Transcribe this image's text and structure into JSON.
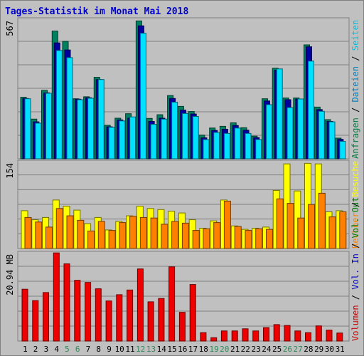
{
  "page": {
    "title": "Tages-Statistik im Monat Mai 2018"
  },
  "chart_data": {
    "type": "bar",
    "categories": [
      "1",
      "2",
      "3",
      "4",
      "5",
      "6",
      "7",
      "8",
      "9",
      "10",
      "11",
      "12",
      "13",
      "14",
      "15",
      "16",
      "17",
      "18",
      "19",
      "20",
      "21",
      "22",
      "23",
      "24",
      "25",
      "26",
      "27",
      "28",
      "29",
      "30",
      "31"
    ],
    "weekend_days": [
      "5",
      "6",
      "12",
      "13",
      "19",
      "20",
      "26",
      "27"
    ],
    "x_label_colors": {
      "weekday": "#000000",
      "weekend": "#2e8b57"
    },
    "panels": [
      {
        "id": "top",
        "ymax_label": "567",
        "ylim": [
          0,
          567
        ],
        "grid": true,
        "side_label_parts": [
          {
            "text": "Anfragen",
            "color": "#008040"
          },
          {
            "text": " / ",
            "color": "#000000"
          },
          {
            "text": "Dateien",
            "color": "#0080c0"
          },
          {
            "text": " / ",
            "color": "#000000"
          },
          {
            "text": "Seiten",
            "color": "#00c0e0"
          }
        ],
        "series": [
          {
            "name": "Anfragen",
            "color": "#008060",
            "values": [
              250,
              161,
              278,
              519,
              477,
              244,
              252,
              331,
              136,
              165,
              183,
              560,
              164,
              179,
              257,
              213,
              192,
              96,
              125,
              132,
              146,
              126,
              92,
              244,
              368,
              247,
              247,
              463,
              210,
              159,
              84
            ]
          },
          {
            "name": "Dateien",
            "color": "#0000a0",
            "values": [
              245,
              150,
              268,
              471,
              442,
              242,
              248,
              322,
              130,
              158,
              165,
              540,
              152,
              165,
              245,
              198,
              182,
              85,
              115,
              120,
              135,
              116,
              86,
              235,
              360,
              240,
              243,
              455,
              200,
              152,
              79
            ]
          },
          {
            "name": "Seiten",
            "color": "#00e0ff",
            "values": [
              244,
              145,
              266,
              440,
              411,
              240,
              246,
              322,
              128,
              154,
              170,
              510,
              140,
              161,
              230,
              184,
              172,
              78,
              107,
              103,
              125,
              103,
              78,
              220,
              365,
              208,
              243,
              397,
              193,
              150,
              71
            ]
          }
        ]
      },
      {
        "id": "middle",
        "ymax_label": "154",
        "ylim": [
          0,
          154
        ],
        "grid": true,
        "side_label_parts": [
          {
            "text": "Rechner",
            "color": "#ff8000"
          },
          {
            "text": " / ",
            "color": "#000000"
          },
          {
            "text": "Besuche",
            "color": "#ffff00"
          }
        ],
        "series": [
          {
            "name": "Besuche",
            "color": "#ffff00",
            "values": [
              67,
              51,
              55,
              86,
              75,
              68,
              44,
              55,
              33,
              48,
              58,
              75,
              71,
              69,
              66,
              63,
              51,
              36,
              49,
              86,
              40,
              34,
              36,
              38,
              103,
              150,
              102,
              151,
              150,
              65,
              67
            ]
          },
          {
            "name": "Rechner",
            "color": "#ff8000",
            "values": [
              55,
              47,
              38,
              71,
              58,
              50,
              31,
              48,
              32,
              46,
              57,
              55,
              54,
              43,
              48,
              45,
              32,
              35,
              46,
              84,
              39,
              32,
              35,
              34,
              88,
              80,
              54,
              78,
              98,
              56,
              65
            ]
          }
        ]
      },
      {
        "id": "bottom",
        "ymax_label": "20.94 MB",
        "ylim": [
          0,
          20.94
        ],
        "grid": true,
        "side_label_parts": [
          {
            "text": "Volumen",
            "color": "#cc0000"
          },
          {
            "text": " / ",
            "color": "#000000"
          },
          {
            "text": "Vol. In",
            "color": "#0000cc"
          },
          {
            "text": " / ",
            "color": "#000000"
          },
          {
            "text": "Vol. Out",
            "color": "#008000"
          }
        ],
        "series": [
          {
            "name": "Volumen",
            "color": "#ee0000",
            "values": [
              12.3,
              9.6,
              11.5,
              20.9,
              18.3,
              14.4,
              13.9,
              12.4,
              9.5,
              11.0,
              12.1,
              17.1,
              9.3,
              10.1,
              17.6,
              6.8,
              13.4,
              2.0,
              0.8,
              2.4,
              2.4,
              2.9,
              2.4,
              3.2,
              3.9,
              3.7,
              2.4,
              2.0,
              3.6,
              2.6,
              1.9
            ]
          }
        ]
      }
    ]
  }
}
